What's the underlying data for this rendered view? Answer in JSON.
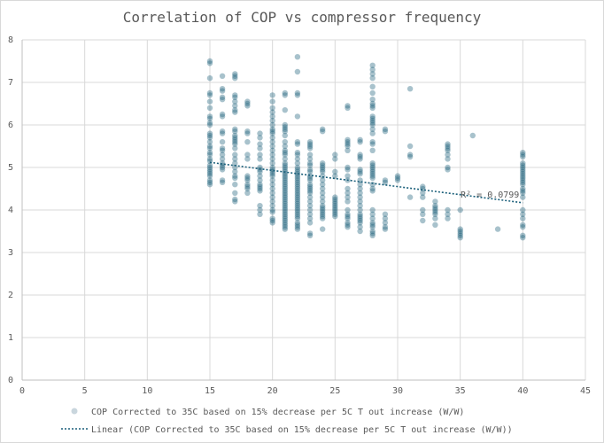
{
  "chart_data": {
    "type": "scatter",
    "title": "Correlation of COP vs compressor frequency",
    "xlabel": "",
    "ylabel": "",
    "xlim": [
      0,
      45
    ],
    "ylim": [
      0,
      8
    ],
    "x_ticks": [
      0,
      5,
      10,
      15,
      20,
      25,
      30,
      35,
      40,
      45
    ],
    "y_ticks": [
      0,
      1,
      2,
      3,
      4,
      5,
      6,
      7,
      8
    ],
    "grid": true,
    "legend_position": "bottom",
    "series": [
      {
        "name": "COP Corrected to 35C based on 15% decrease per 5C T out increase (W/W)",
        "color": "#1a5f7a",
        "x": [
          15,
          15,
          15,
          15,
          15,
          15,
          15,
          15,
          15,
          15,
          15,
          15,
          15,
          15,
          15,
          15,
          15,
          15,
          15,
          15,
          15,
          15,
          15,
          15,
          15,
          15,
          15,
          15,
          15,
          15,
          16,
          16,
          16,
          16,
          16,
          16,
          16,
          16,
          16,
          16,
          16,
          16,
          16,
          16,
          16,
          16,
          16,
          16,
          16,
          16,
          17,
          17,
          17,
          17,
          17,
          17,
          17,
          17,
          17,
          17,
          17,
          17,
          17,
          17,
          17,
          17,
          17,
          17,
          17,
          17,
          17,
          17,
          17,
          17,
          17,
          17,
          17,
          17,
          18,
          18,
          18,
          18,
          18,
          18,
          18,
          18,
          18,
          18,
          18,
          18,
          18,
          18,
          18,
          19,
          19,
          19,
          19,
          19,
          19,
          19,
          19,
          19,
          19,
          19,
          19,
          19,
          19,
          19,
          19,
          19,
          19,
          20,
          20,
          20,
          20,
          20,
          20,
          20,
          20,
          20,
          20,
          20,
          20,
          20,
          20,
          20,
          20,
          20,
          20,
          20,
          20,
          20,
          20,
          20,
          20,
          20,
          20,
          20,
          20,
          20,
          20,
          20,
          20,
          20,
          20,
          21,
          21,
          21,
          21,
          21,
          21,
          21,
          21,
          21,
          21,
          21,
          21,
          21,
          21,
          21,
          21,
          21,
          21,
          21,
          21,
          21,
          21,
          21,
          21,
          21,
          21,
          21,
          21,
          21,
          21,
          21,
          21,
          21,
          21,
          21,
          21,
          21,
          21,
          21,
          21,
          21,
          21,
          21,
          21,
          21,
          21,
          22,
          22,
          22,
          22,
          22,
          22,
          22,
          22,
          22,
          22,
          22,
          22,
          22,
          22,
          22,
          22,
          22,
          22,
          22,
          22,
          22,
          22,
          22,
          22,
          22,
          22,
          22,
          22,
          22,
          22,
          22,
          22,
          22,
          22,
          22,
          22,
          22,
          22,
          22,
          22,
          23,
          23,
          23,
          23,
          23,
          23,
          23,
          23,
          23,
          23,
          23,
          23,
          23,
          23,
          23,
          23,
          23,
          23,
          23,
          23,
          23,
          23,
          23,
          23,
          23,
          23,
          23,
          24,
          24,
          24,
          24,
          24,
          24,
          24,
          24,
          24,
          24,
          24,
          24,
          24,
          24,
          24,
          24,
          24,
          24,
          24,
          24,
          24,
          24,
          25,
          25,
          25,
          25,
          25,
          25,
          25,
          25,
          25,
          25,
          25,
          25,
          25,
          25,
          26,
          26,
          26,
          26,
          26,
          26,
          26,
          26,
          26,
          26,
          26,
          26,
          26,
          26,
          26,
          26,
          26,
          26,
          26,
          26,
          26,
          26,
          27,
          27,
          27,
          27,
          27,
          27,
          27,
          27,
          27,
          27,
          27,
          27,
          27,
          27,
          27,
          27,
          27,
          27,
          27,
          27,
          27,
          27,
          27,
          28,
          28,
          28,
          28,
          28,
          28,
          28,
          28,
          28,
          28,
          28,
          28,
          28,
          28,
          28,
          28,
          28,
          28,
          28,
          28,
          28,
          28,
          28,
          28,
          28,
          28,
          28,
          28,
          28,
          28,
          28,
          28,
          28,
          28,
          28,
          28,
          28,
          28,
          28,
          28,
          29,
          29,
          29,
          29,
          29,
          29,
          29,
          29,
          29,
          30,
          30,
          30,
          31,
          31,
          31,
          31,
          31,
          32,
          32,
          32,
          32,
          32,
          32,
          32,
          33,
          33,
          33,
          33,
          33,
          33,
          33,
          33,
          34,
          34,
          34,
          34,
          34,
          34,
          34,
          34,
          34,
          34,
          34,
          35,
          35,
          35,
          35,
          35,
          35,
          36,
          38,
          40,
          40,
          40,
          40,
          40,
          40,
          40,
          40,
          40,
          40,
          40,
          40,
          40,
          40,
          40,
          40,
          40,
          40,
          40,
          40,
          40,
          40,
          40,
          40,
          40
        ],
        "y": [
          7.45,
          7.5,
          7.1,
          6.75,
          6.7,
          6.55,
          6.4,
          6.2,
          6.15,
          6.05,
          6.0,
          5.8,
          5.75,
          5.7,
          5.6,
          5.5,
          5.45,
          5.35,
          5.3,
          5.2,
          5.15,
          5.05,
          5.0,
          4.95,
          4.9,
          4.85,
          4.8,
          4.7,
          4.65,
          4.6,
          7.15,
          6.85,
          6.8,
          6.65,
          6.6,
          6.25,
          6.2,
          5.85,
          5.8,
          5.6,
          5.45,
          5.4,
          5.3,
          5.2,
          5.1,
          5.05,
          5.0,
          4.95,
          4.7,
          4.65,
          7.2,
          7.15,
          7.1,
          6.7,
          6.65,
          6.55,
          6.45,
          6.35,
          6.3,
          5.9,
          5.85,
          5.75,
          5.7,
          5.65,
          5.6,
          5.55,
          5.45,
          5.3,
          5.2,
          5.1,
          5.0,
          4.9,
          4.8,
          4.75,
          4.6,
          4.4,
          4.25,
          4.2,
          6.55,
          6.5,
          6.45,
          5.85,
          5.8,
          5.6,
          5.3,
          5.2,
          4.8,
          4.75,
          4.7,
          4.6,
          4.55,
          4.5,
          4.4,
          5.8,
          5.7,
          5.55,
          5.45,
          5.3,
          5.2,
          5.0,
          4.95,
          4.9,
          4.8,
          4.7,
          4.6,
          4.55,
          4.5,
          4.45,
          4.1,
          4.0,
          3.9,
          6.7,
          6.55,
          6.4,
          6.3,
          6.2,
          6.1,
          6.0,
          5.9,
          5.85,
          5.8,
          5.7,
          5.6,
          5.5,
          5.4,
          5.3,
          5.2,
          5.1,
          5.0,
          4.95,
          4.9,
          4.85,
          4.8,
          4.7,
          4.6,
          4.5,
          4.4,
          4.3,
          4.2,
          4.1,
          4.0,
          3.95,
          3.8,
          3.75,
          3.7,
          6.75,
          6.7,
          6.35,
          6.0,
          5.95,
          5.9,
          5.85,
          5.75,
          5.6,
          5.5,
          5.4,
          5.35,
          5.3,
          5.2,
          5.1,
          5.05,
          5.0,
          4.95,
          4.9,
          4.85,
          4.8,
          4.75,
          4.7,
          4.65,
          4.6,
          4.55,
          4.5,
          4.45,
          4.4,
          4.35,
          4.3,
          4.25,
          4.2,
          4.15,
          4.1,
          4.05,
          4.0,
          3.95,
          3.9,
          3.85,
          3.8,
          3.75,
          3.7,
          3.65,
          3.6,
          3.55,
          7.6,
          7.25,
          6.75,
          6.7,
          6.2,
          5.6,
          5.55,
          5.35,
          5.3,
          5.2,
          5.1,
          5.0,
          4.95,
          4.9,
          4.85,
          4.8,
          4.75,
          4.7,
          4.65,
          4.6,
          4.55,
          4.5,
          4.45,
          4.4,
          4.35,
          4.3,
          4.25,
          4.2,
          4.15,
          4.1,
          4.05,
          4.0,
          3.95,
          3.9,
          3.85,
          3.8,
          3.7,
          3.65,
          3.6,
          3.55,
          5.6,
          5.55,
          5.5,
          5.45,
          5.3,
          5.2,
          5.1,
          5.05,
          4.95,
          4.9,
          4.8,
          4.75,
          4.7,
          4.6,
          4.55,
          4.5,
          4.45,
          4.4,
          4.3,
          4.2,
          4.1,
          4.0,
          3.9,
          3.8,
          3.7,
          3.45,
          3.4,
          5.9,
          5.85,
          5.1,
          5.05,
          5.0,
          4.95,
          4.9,
          4.8,
          4.7,
          4.6,
          4.5,
          4.4,
          4.3,
          4.2,
          4.1,
          4.05,
          4.0,
          3.95,
          3.9,
          3.85,
          3.8,
          3.55,
          5.3,
          5.2,
          4.9,
          4.8,
          4.3,
          4.25,
          4.2,
          4.15,
          4.1,
          4.05,
          4.0,
          3.95,
          3.9,
          3.85,
          6.45,
          6.4,
          5.65,
          5.6,
          5.55,
          5.5,
          5.4,
          5.0,
          4.95,
          4.8,
          4.7,
          4.5,
          4.4,
          4.3,
          4.2,
          4.0,
          3.9,
          3.85,
          3.8,
          3.7,
          3.65,
          3.6,
          5.65,
          5.6,
          5.3,
          5.25,
          5.2,
          4.95,
          4.9,
          4.85,
          4.7,
          4.6,
          4.5,
          4.4,
          4.3,
          4.2,
          4.1,
          4.0,
          3.9,
          3.85,
          3.8,
          3.75,
          3.7,
          3.6,
          3.5,
          7.4,
          7.3,
          7.2,
          7.1,
          6.9,
          6.75,
          6.6,
          6.5,
          6.45,
          6.4,
          6.2,
          6.15,
          6.1,
          6.05,
          6.0,
          5.9,
          5.8,
          5.6,
          5.55,
          5.4,
          5.1,
          5.05,
          5.0,
          4.95,
          4.9,
          4.85,
          4.8,
          4.75,
          4.6,
          4.5,
          4.45,
          4.0,
          3.9,
          3.8,
          3.7,
          3.65,
          3.6,
          3.5,
          3.45,
          3.4,
          5.9,
          5.85,
          4.7,
          4.65,
          3.9,
          3.8,
          3.7,
          3.6,
          3.55,
          4.8,
          4.75,
          4.7,
          6.85,
          5.5,
          5.3,
          5.25,
          4.3,
          4.55,
          4.5,
          4.4,
          4.3,
          4.0,
          3.9,
          3.75,
          4.2,
          4.1,
          4.05,
          4.0,
          3.95,
          3.9,
          3.8,
          3.65,
          5.55,
          5.5,
          5.45,
          5.4,
          5.3,
          5.2,
          5.0,
          4.95,
          4.0,
          3.9,
          3.8,
          4.0,
          3.55,
          3.5,
          3.45,
          3.4,
          3.35,
          5.75,
          3.55,
          5.35,
          5.3,
          5.25,
          5.1,
          5.05,
          5.0,
          4.95,
          4.9,
          4.85,
          4.8,
          4.75,
          4.7,
          4.65,
          4.6,
          4.5,
          4.45,
          4.4,
          4.3,
          4.0,
          3.9,
          3.8,
          3.65,
          3.6,
          3.4,
          3.35
        ]
      }
    ],
    "trendline": {
      "name": "Linear (COP Corrected to 35C based on 15% decrease per 5C T out increase (W/W))",
      "type": "linear",
      "x_start": 15,
      "y_start": 5.12,
      "x_end": 40,
      "y_end": 4.17,
      "color": "#1a5f7a",
      "r_squared_label": "R² = 0.0799"
    }
  }
}
